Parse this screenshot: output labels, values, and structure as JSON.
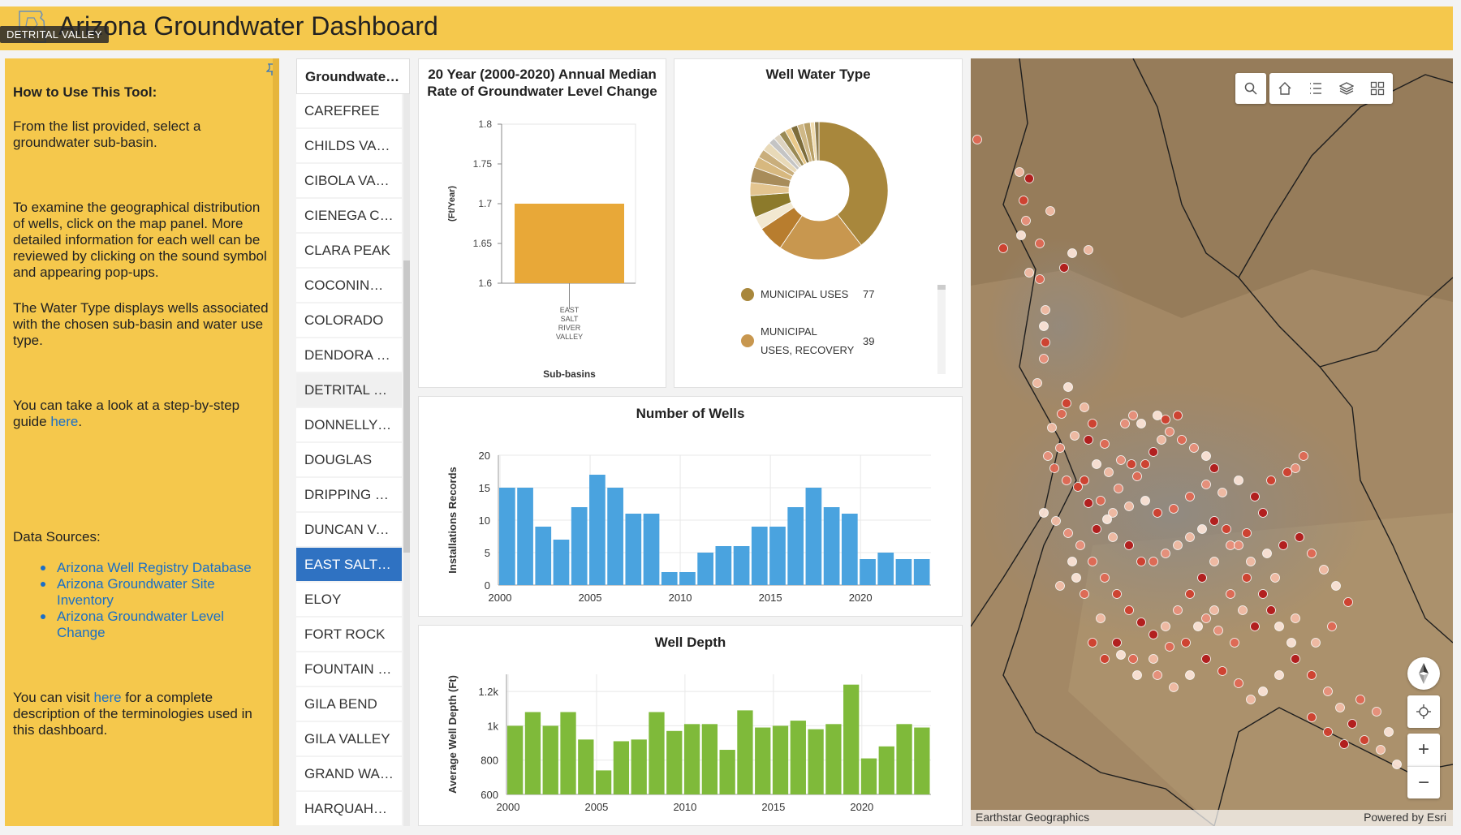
{
  "header": {
    "title": "Arizona Groundwater Dashboard",
    "tooltip": "DETRITAL VALLEY",
    "bg_color": "#f5c84c"
  },
  "info": {
    "heading": "How to Use This Tool:",
    "p1": "From the list provided, select a groundwater sub-basin.",
    "p2": "To examine the geographical distribution of wells, click on the map panel. More detailed information for each well can be reviewed by clicking on the sound symbol and appearing pop-ups.",
    "p3": "The Water Type displays wells associated with the chosen sub-basin and water use type.",
    "p4_before": "You can take a look at a step-by-step guide ",
    "p4_link": "here",
    "p4_after": ".",
    "sources_heading": "Data Sources:",
    "sources": [
      "Arizona Well Registry Database",
      "Arizona Groundwater Site Inventory",
      "Arizona Groundwater Level Change"
    ],
    "p5_before": "You can visit ",
    "p5_link": "here",
    "p5_after": " for a complete description of the terminologies used in this dashboard."
  },
  "basin_list": {
    "header": "Groundwater Sub-basins",
    "items": [
      "CAREFREE",
      "CHILDS VALLEY",
      "CIBOLA VALLEY",
      "CIENEGA CREEK",
      "CLARA PEAK",
      "COCONINO PLATEAU",
      "COLORADO",
      "DENDORA VALLEY",
      "DETRITAL VALLEY",
      "DONNELLY WASH",
      "DOUGLAS",
      "DRIPPING SPRINGS",
      "DUNCAN VALLEY",
      "EAST SALT RIVER VALLEY",
      "ELOY",
      "FORT ROCK",
      "FOUNTAIN HILLS",
      "GILA BEND",
      "GILA VALLEY",
      "GRAND WASH",
      "HARQUAHALA"
    ],
    "selected": "EAST SALT RIVER VALLEY",
    "hovered": "DETRITAL VALLEY"
  },
  "rate_chart": {
    "title": "20 Year (2000-2020) Annual Median Rate of Groundwater Level Change",
    "chart_data": {
      "type": "bar",
      "categories": [
        "EAST SALT RIVER VALLEY"
      ],
      "category_lines": [
        "EAST",
        "SALT",
        "RIVER",
        "VALLEY"
      ],
      "values": [
        1.7
      ],
      "ylabel": "(Ft/Year)",
      "xlabel": "Sub-basins",
      "ylim": [
        1.6,
        1.8
      ],
      "yticks": [
        "1.6",
        "1.65",
        "1.7",
        "1.75",
        "1.8"
      ],
      "color": "#e8a838"
    }
  },
  "water_type": {
    "title": "Well Water Type",
    "chart_data": {
      "type": "pie",
      "donut": true,
      "slices": [
        {
          "label": "MUNICIPAL USES",
          "value": 77,
          "color": "#a8873c"
        },
        {
          "label": "MUNICIPAL USES, RECOVERY",
          "value": 39,
          "color": "#c8974f"
        },
        {
          "label": "",
          "value": 12,
          "color": "#b87d2e"
        },
        {
          "label": "",
          "value": 6,
          "color": "#f2e8d0"
        },
        {
          "label": "",
          "value": 10,
          "color": "#8c7a2b"
        },
        {
          "label": "",
          "value": 6,
          "color": "#e3c48f"
        },
        {
          "label": "",
          "value": 7,
          "color": "#a88c5a"
        },
        {
          "label": "",
          "value": 5,
          "color": "#d7b87f"
        },
        {
          "label": "",
          "value": 4,
          "color": "#c9ae7c"
        },
        {
          "label": "",
          "value": 4,
          "color": "#e8d9b8"
        },
        {
          "label": "",
          "value": 3,
          "color": "#c4c4c4"
        },
        {
          "label": "",
          "value": 3,
          "color": "#ddd3c0"
        },
        {
          "label": "",
          "value": 3,
          "color": "#9a8a55"
        },
        {
          "label": "",
          "value": 3,
          "color": "#e9c98a"
        },
        {
          "label": "",
          "value": 3,
          "color": "#7d6c3a"
        },
        {
          "label": "",
          "value": 3,
          "color": "#cfb887"
        },
        {
          "label": "",
          "value": 3,
          "color": "#b9a066"
        },
        {
          "label": "",
          "value": 2,
          "color": "#f0dcb0"
        },
        {
          "label": "",
          "value": 2,
          "color": "#8f7d4f"
        }
      ]
    },
    "legend": [
      {
        "label_lines": [
          "MUNICIPAL USES"
        ],
        "count": "77",
        "color": "#a8873c"
      },
      {
        "label_lines": [
          "MUNICIPAL",
          "USES, RECOVERY"
        ],
        "count": "39",
        "color": "#c8974f"
      }
    ]
  },
  "wells_chart": {
    "title": "Number of Wells",
    "chart_data": {
      "type": "bar",
      "x": [
        2000,
        2001,
        2002,
        2003,
        2004,
        2005,
        2006,
        2007,
        2008,
        2009,
        2010,
        2011,
        2012,
        2013,
        2014,
        2015,
        2016,
        2017,
        2018,
        2019,
        2020,
        2021,
        2022,
        2023
      ],
      "values": [
        15,
        15,
        9,
        7,
        12,
        17,
        15,
        11,
        11,
        2,
        2,
        5,
        6,
        6,
        9,
        9,
        12,
        15,
        12,
        11,
        4,
        5,
        4,
        4
      ],
      "ylabel": "Installations Records",
      "ylim": [
        0,
        20
      ],
      "yticks": [
        0,
        5,
        10,
        15,
        20
      ],
      "xticks": [
        2000,
        2005,
        2010,
        2015,
        2020
      ],
      "color": "#4aa3df"
    }
  },
  "depth_chart": {
    "title": "Well Depth",
    "chart_data": {
      "type": "bar",
      "x": [
        2000,
        2001,
        2002,
        2003,
        2004,
        2005,
        2006,
        2007,
        2008,
        2009,
        2010,
        2011,
        2012,
        2013,
        2014,
        2015,
        2016,
        2017,
        2018,
        2019,
        2020,
        2021,
        2022,
        2023
      ],
      "values": [
        1000,
        1080,
        1000,
        1080,
        920,
        740,
        910,
        920,
        1080,
        970,
        1010,
        1010,
        860,
        1090,
        990,
        1000,
        1030,
        980,
        1010,
        1240,
        810,
        880,
        1010,
        990
      ],
      "ylabel": "Average Well Depth (Ft)",
      "ylim": [
        600,
        1300
      ],
      "yticks": [
        600,
        800,
        1000,
        1200
      ],
      "ytick_labels": [
        "600",
        "800",
        "1k",
        "1.2k"
      ],
      "xticks": [
        2000,
        2005,
        2010,
        2015,
        2020
      ],
      "color": "#7fba3a"
    }
  },
  "map": {
    "attribution_left": "Earthstar Geographics",
    "attribution_right": "Powered by Esri",
    "tools": [
      "search-icon",
      "home-icon",
      "legend-list-icon",
      "layers-icon",
      "basemap-gallery-icon"
    ],
    "controls": [
      "compass-icon",
      "locate-icon",
      "zoom-in-icon",
      "zoom-out-icon"
    ],
    "zoom_in": "+",
    "zoom_out": "−",
    "point_colors": [
      "#b31b1b",
      "#d0402f",
      "#e06a55",
      "#e9917c",
      "#f2bca5",
      "#fbe3d6"
    ]
  }
}
